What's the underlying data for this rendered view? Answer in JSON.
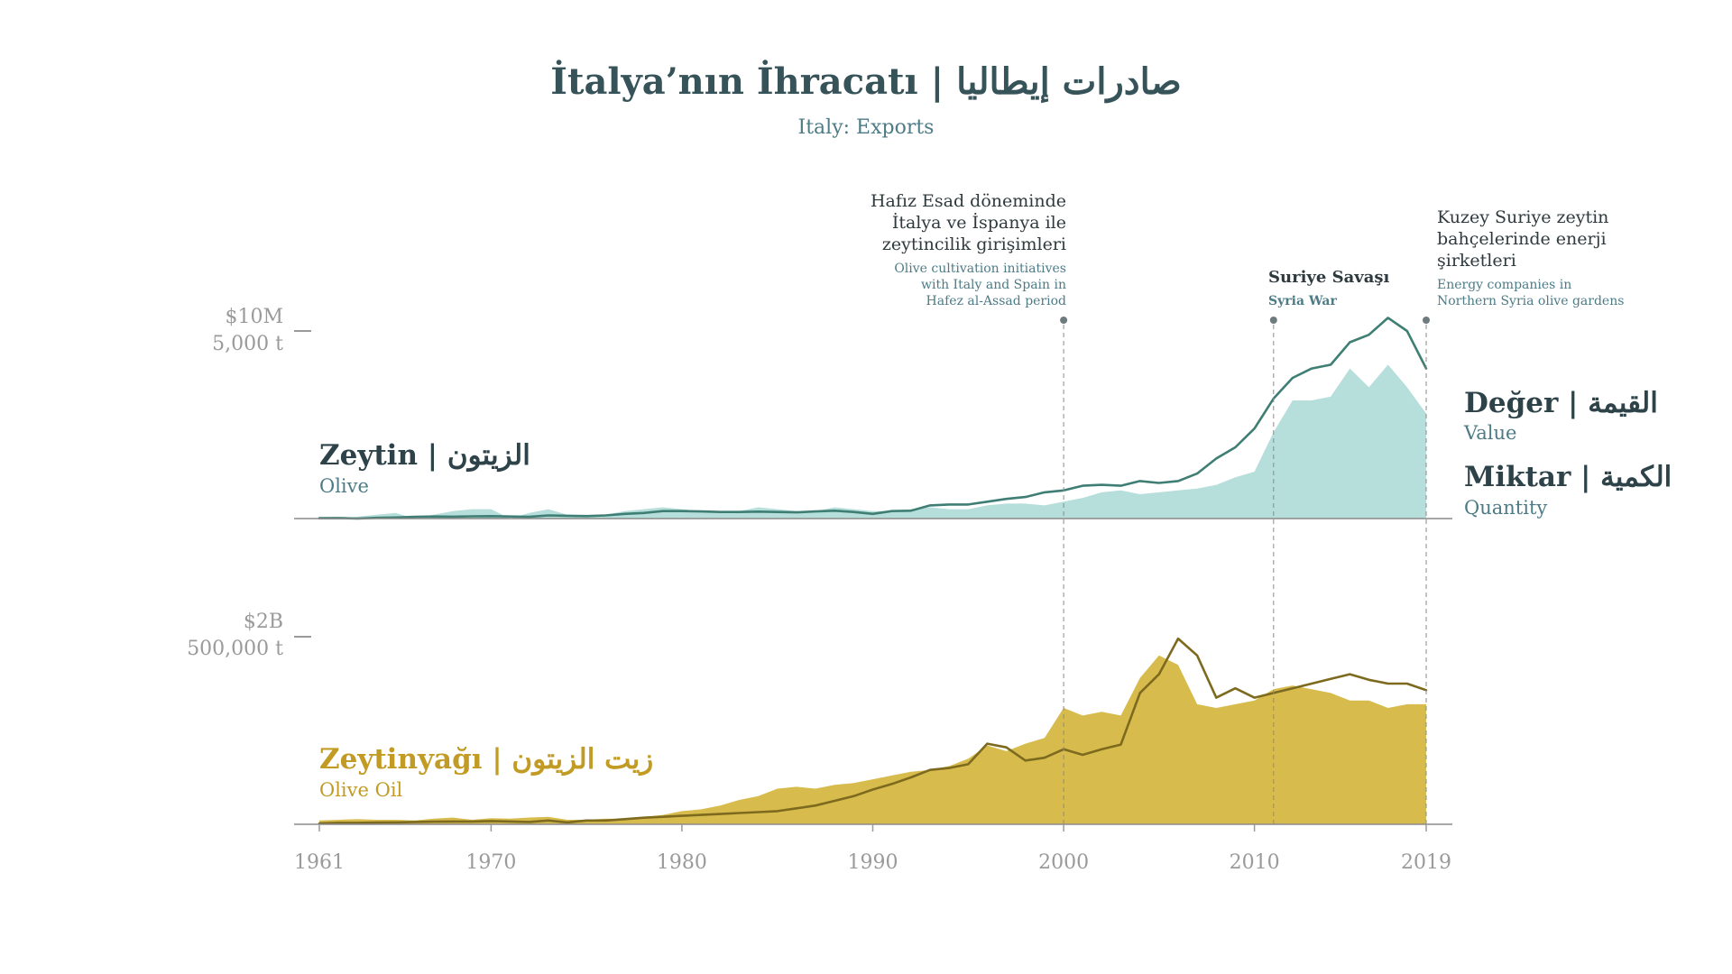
{
  "title": "İtalya’nın İhracatı  |  صادرات إيطاليا",
  "subtitle": "Italy: Exports",
  "colors": {
    "olive_value": "#3f7e74",
    "olive_quantity": "#a9d8d4",
    "oil_value": "#7d6a1e",
    "oil_quantity": "#d3b53a",
    "olive_label": "#2e4349",
    "olive_sublabel": "#4d7b86",
    "oil_label": "#c29b24",
    "axis": "#9a9a9a"
  },
  "annotations": [
    {
      "year": 2000,
      "lines_tr": [
        "Hafız Esad döneminde",
        "İtalya ve İspanya ile",
        "zeytincilik girişimleri"
      ],
      "lines_en": [
        "Olive cultivation initiatives",
        "with Italy and Spain in",
        "Hafez al-Assad period"
      ]
    },
    {
      "year": 2011,
      "lines_tr": [
        "Suriye Savaşı"
      ],
      "lines_en": [
        "Syria War"
      ]
    },
    {
      "year": 2019,
      "lines_tr": [
        "Kuzey Suriye zeytin",
        "bahçelerinde enerji",
        "şirketleri"
      ],
      "lines_en": [
        "Energy companies in",
        "Northern Syria olive gardens"
      ]
    }
  ],
  "legend": {
    "value_label": "Değer | القيمة",
    "value_sub": "Value",
    "quantity_label": "Miktar | الكمية",
    "quantity_sub": "Quantity"
  },
  "chart_data": [
    {
      "type": "area",
      "panel": "olive",
      "series_label": "Zeytin | الزيتون",
      "series_sublabel": "Olive",
      "y_labels": [
        "$10M",
        "5,000 t"
      ],
      "ylim_value": [
        0,
        10000000
      ],
      "ylim_quantity": [
        0,
        5000
      ],
      "x": [
        1961,
        1962,
        1963,
        1964,
        1965,
        1966,
        1967,
        1968,
        1969,
        1970,
        1971,
        1972,
        1973,
        1974,
        1975,
        1976,
        1977,
        1978,
        1979,
        1980,
        1981,
        1982,
        1983,
        1984,
        1985,
        1986,
        1987,
        1988,
        1989,
        1990,
        1991,
        1992,
        1993,
        1994,
        1995,
        1996,
        1997,
        1998,
        1999,
        2000,
        2001,
        2002,
        2003,
        2004,
        2005,
        2006,
        2007,
        2008,
        2009,
        2010,
        2011,
        2012,
        2013,
        2014,
        2015,
        2016,
        2017,
        2018,
        2019
      ],
      "series": [
        {
          "name": "Değer | القيمة",
          "unit": "USD",
          "values": [
            20000,
            30000,
            0,
            40000,
            60000,
            90000,
            110000,
            100000,
            120000,
            130000,
            110000,
            90000,
            170000,
            150000,
            130000,
            170000,
            250000,
            300000,
            400000,
            400000,
            380000,
            350000,
            350000,
            370000,
            350000,
            330000,
            380000,
            420000,
            350000,
            250000,
            400000,
            420000,
            700000,
            750000,
            750000,
            900000,
            1050000,
            1150000,
            1400000,
            1500000,
            1750000,
            1800000,
            1750000,
            2000000,
            1900000,
            2000000,
            2400000,
            3200000,
            3800000,
            4800000,
            6400000,
            7500000,
            8000000,
            8200000,
            9400000,
            9800000,
            10700000,
            10000000,
            8000000
          ]
        },
        {
          "name": "Miktar | الكمية",
          "unit": "t",
          "values": [
            0,
            0,
            50,
            100,
            150,
            0,
            100,
            200,
            250,
            250,
            0,
            150,
            250,
            100,
            100,
            100,
            200,
            250,
            300,
            250,
            200,
            150,
            200,
            300,
            250,
            200,
            200,
            300,
            250,
            200,
            200,
            250,
            300,
            250,
            250,
            350,
            400,
            400,
            350,
            450,
            550,
            700,
            750,
            650,
            700,
            750,
            800,
            900,
            1100,
            1250,
            2300,
            3150,
            3150,
            3250,
            4000,
            3500,
            4100,
            3500,
            2800
          ]
        }
      ]
    },
    {
      "type": "area",
      "panel": "olive_oil",
      "series_label": "Zeytinyağı | زيت الزيتون",
      "series_sublabel": "Olive Oil",
      "y_labels": [
        "$2B",
        "500,000 t"
      ],
      "ylim_value": [
        0,
        2000000000
      ],
      "ylim_quantity": [
        0,
        500000
      ],
      "x": [
        1961,
        1962,
        1963,
        1964,
        1965,
        1966,
        1967,
        1968,
        1969,
        1970,
        1971,
        1972,
        1973,
        1974,
        1975,
        1976,
        1977,
        1978,
        1979,
        1980,
        1981,
        1982,
        1983,
        1984,
        1985,
        1986,
        1987,
        1988,
        1989,
        1990,
        1991,
        1992,
        1993,
        1994,
        1995,
        1996,
        1997,
        1998,
        1999,
        2000,
        2001,
        2002,
        2003,
        2004,
        2005,
        2006,
        2007,
        2008,
        2009,
        2010,
        2011,
        2012,
        2013,
        2014,
        2015,
        2016,
        2017,
        2018,
        2019
      ],
      "series": [
        {
          "name": "Değer | القيمة",
          "unit": "USD",
          "values": [
            10000000,
            15000000,
            15000000,
            18000000,
            20000000,
            25000000,
            28000000,
            30000000,
            30000000,
            35000000,
            30000000,
            25000000,
            40000000,
            20000000,
            40000000,
            40000000,
            55000000,
            70000000,
            80000000,
            90000000,
            100000000,
            110000000,
            120000000,
            130000000,
            140000000,
            170000000,
            200000000,
            250000000,
            300000000,
            370000000,
            430000000,
            500000000,
            580000000,
            600000000,
            640000000,
            860000000,
            820000000,
            680000000,
            710000000,
            800000000,
            740000000,
            800000000,
            850000000,
            1400000000,
            1600000000,
            1980000000,
            1800000000,
            1350000000,
            1450000000,
            1350000000,
            1400000000,
            1450000000,
            1500000000,
            1550000000,
            1600000000,
            1540000000,
            1500000000,
            1500000000,
            1430000000
          ]
        },
        {
          "name": "Miktar | الكمية",
          "unit": "t",
          "values": [
            10000,
            12000,
            14000,
            12000,
            12000,
            10000,
            15000,
            18000,
            12000,
            16000,
            15000,
            18000,
            20000,
            12000,
            12000,
            15000,
            14000,
            20000,
            25000,
            35000,
            40000,
            50000,
            65000,
            75000,
            95000,
            100000,
            95000,
            105000,
            110000,
            120000,
            130000,
            140000,
            145000,
            155000,
            175000,
            210000,
            195000,
            215000,
            230000,
            310000,
            290000,
            300000,
            290000,
            390000,
            450000,
            425000,
            320000,
            310000,
            320000,
            330000,
            360000,
            370000,
            360000,
            350000,
            330000,
            330000,
            310000,
            320000,
            320000
          ]
        }
      ]
    }
  ],
  "x_ticks": [
    "1961",
    "1970",
    "1980",
    "1990",
    "2000",
    "2010",
    "2019"
  ]
}
